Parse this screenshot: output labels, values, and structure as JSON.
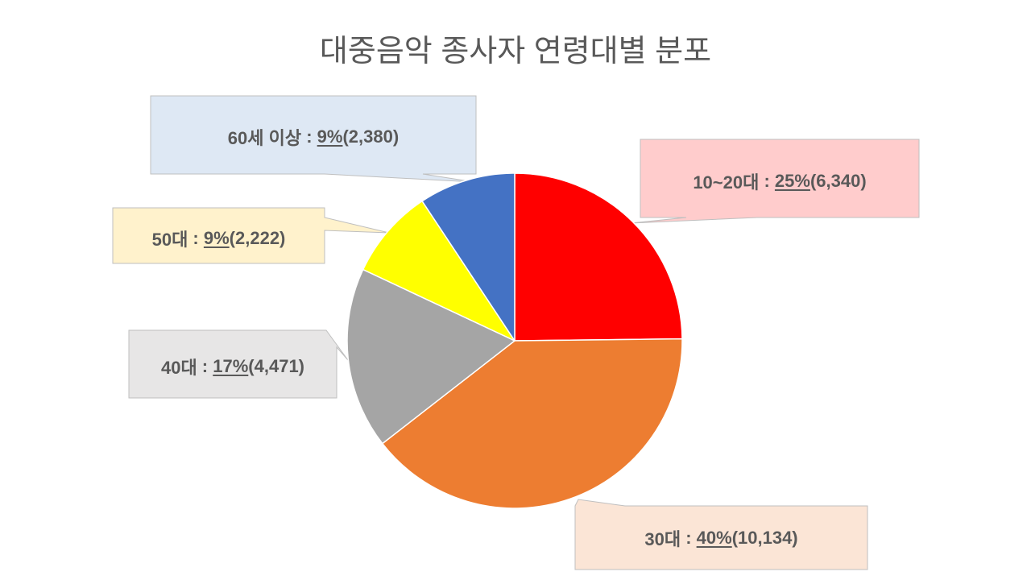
{
  "chart_data": {
    "type": "pie",
    "title": "대중음악 종사자 연령대별 분포",
    "label_separator": " : ",
    "slices": [
      {
        "label": "10~20대",
        "value": 6340,
        "percent": "25%",
        "value_label": "(6,340)",
        "color": "#ff0000",
        "callout_color": "#ffcccc"
      },
      {
        "label": "30대",
        "value": 10134,
        "percent": "40%",
        "value_label": "(10,134)",
        "color": "#ed7d31",
        "callout_color": "#fbe5d6"
      },
      {
        "label": "40대",
        "value": 4471,
        "percent": "17%",
        "value_label": "(4,471)",
        "color": "#a5a5a5",
        "callout_color": "#e7e6e6"
      },
      {
        "label": "50대",
        "value": 2222,
        "percent": "9%",
        "value_label": "(2,222)",
        "color": "#ffff00",
        "callout_color": "#fff2cc"
      },
      {
        "label": "60세 이상",
        "value": 2380,
        "percent": "9%",
        "value_label": "(2,380)",
        "color": "#4472c4",
        "callout_color": "#dee8f4"
      }
    ]
  },
  "colors": {
    "text": "#595959",
    "callout_border": "#bfbfbf",
    "slice_border": "#ffffff"
  }
}
